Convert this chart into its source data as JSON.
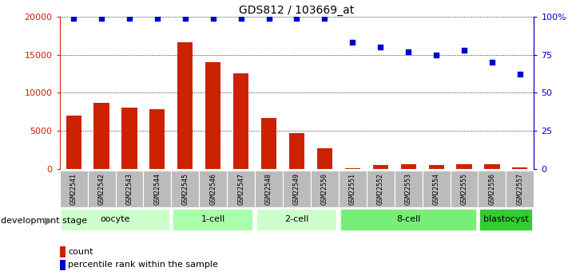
{
  "title": "GDS812 / 103669_at",
  "samples": [
    "GSM22541",
    "GSM22542",
    "GSM22543",
    "GSM22544",
    "GSM22545",
    "GSM22546",
    "GSM22547",
    "GSM22548",
    "GSM22549",
    "GSM22550",
    "GSM22551",
    "GSM22552",
    "GSM22553",
    "GSM22554",
    "GSM22555",
    "GSM22556",
    "GSM22557"
  ],
  "counts": [
    7000,
    8700,
    8100,
    7800,
    16600,
    14000,
    12600,
    6700,
    4700,
    2700,
    120,
    550,
    650,
    550,
    600,
    600,
    200
  ],
  "percentile_ranks": [
    99,
    99,
    99,
    99,
    99,
    99,
    99,
    99,
    99,
    99,
    83,
    80,
    77,
    75,
    78,
    70,
    62
  ],
  "stages": [
    {
      "label": "oocyte",
      "start": 0,
      "end": 3,
      "color": "#ccffcc"
    },
    {
      "label": "1-cell",
      "start": 4,
      "end": 6,
      "color": "#aaffaa"
    },
    {
      "label": "2-cell",
      "start": 7,
      "end": 9,
      "color": "#ccffcc"
    },
    {
      "label": "8-cell",
      "start": 10,
      "end": 14,
      "color": "#77ee77"
    },
    {
      "label": "blastocyst",
      "start": 15,
      "end": 16,
      "color": "#33cc33"
    }
  ],
  "bar_color": "#cc2200",
  "dot_color": "#0000cc",
  "ylim_left": [
    0,
    20000
  ],
  "ylim_right": [
    0,
    100
  ],
  "yticks_left": [
    0,
    5000,
    10000,
    15000,
    20000
  ],
  "ytick_labels_left": [
    "0",
    "5000",
    "10000",
    "15000",
    "20000"
  ],
  "yticks_right": [
    0,
    25,
    50,
    75,
    100
  ],
  "ytick_labels_right": [
    "0",
    "25",
    "50",
    "75",
    "100%"
  ],
  "tick_label_bg": "#bbbbbb",
  "xlabel_bottom": "development stage",
  "legend_count_label": "count",
  "legend_pct_label": "percentile rank within the sample"
}
